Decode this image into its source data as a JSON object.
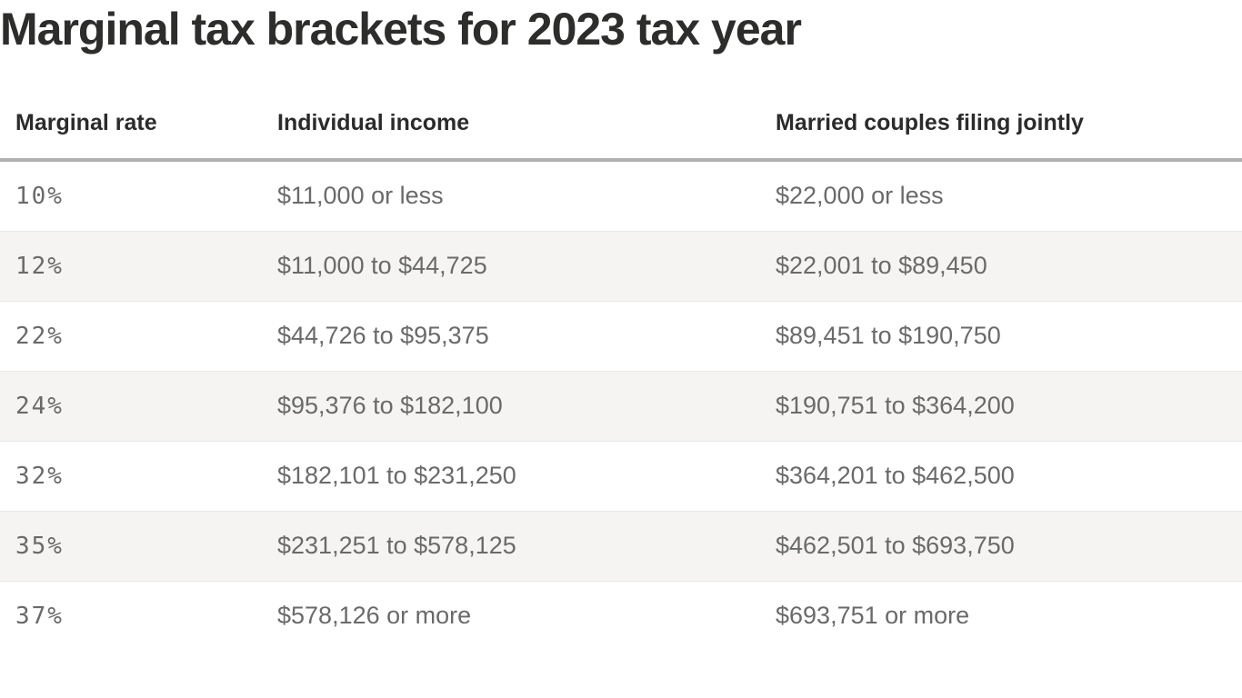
{
  "chart_data": {
    "type": "table",
    "title": "Marginal tax brackets for 2023 tax year",
    "columns": [
      "Marginal rate",
      "Individual income",
      "Married couples filing jointly"
    ],
    "rows": [
      [
        "10%",
        "$11,000 or less",
        "$22,000 or less"
      ],
      [
        "12%",
        "$11,000 to $44,725",
        "$22,001 to $89,450"
      ],
      [
        "22%",
        "$44,726 to $95,375",
        "$89,451 to $190,750"
      ],
      [
        "24%",
        "$95,376 to $182,100",
        "$190,751 to $364,200"
      ],
      [
        "32%",
        "$182,101 to $231,250",
        "$364,201 to $462,500"
      ],
      [
        "35%",
        "$231,251 to $578,125",
        "$462,501 to $693,750"
      ],
      [
        "37%",
        "$578,126 or more",
        "$693,751 or more"
      ]
    ],
    "layout": {
      "zebra_striping": true,
      "header_rule": true
    }
  },
  "colors": {
    "title_text": "#2d2d2c",
    "header_text": "#2b2b2b",
    "body_text": "#6a6a6a",
    "alt_row_background": "#f5f4f3",
    "header_rule": "#b0b0b0",
    "row_separator": "#e9e8e6",
    "page_background": "#ffffff"
  }
}
